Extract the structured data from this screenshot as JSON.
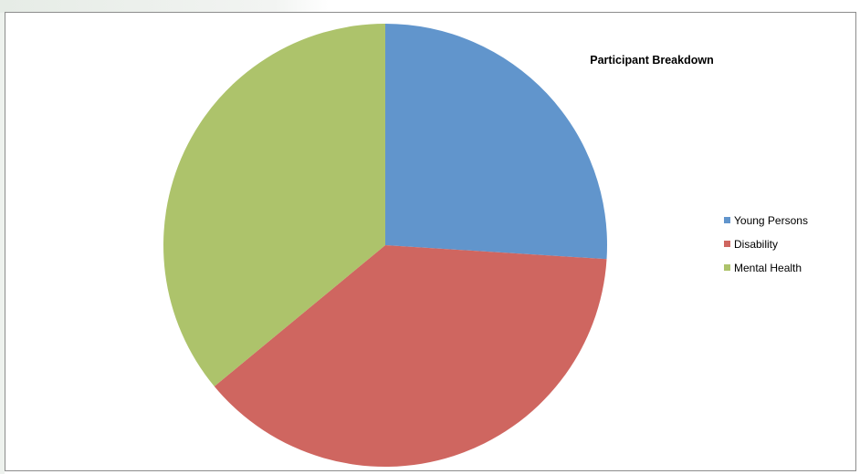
{
  "chart_data": {
    "type": "pie",
    "title": "Participant Breakdown",
    "categories": [
      "Young Persons",
      "Disability",
      "Mental Health"
    ],
    "values": [
      26,
      38,
      36
    ],
    "colors": [
      "#6195cc",
      "#cf6660",
      "#adc36b"
    ],
    "legend_position": "right"
  }
}
